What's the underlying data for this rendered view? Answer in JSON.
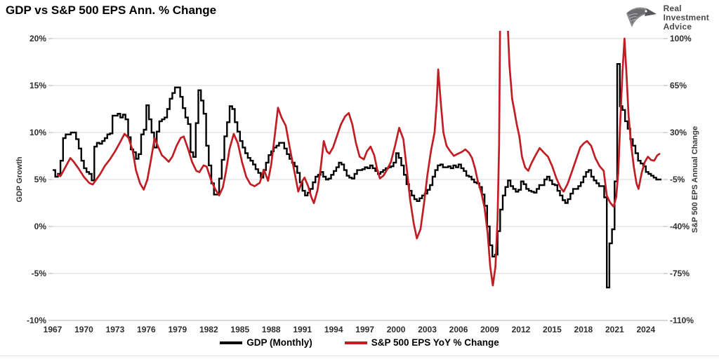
{
  "title": "GDP vs S&P 500 EPS Ann. % Change",
  "logo": {
    "lines": [
      "Real",
      "Investment",
      "Advice"
    ]
  },
  "colors": {
    "gdp_line": "#000000",
    "eps_line": "#c01e24",
    "gridline": "#d7d7d7",
    "tick": "#b0b0b0",
    "label": "#2e2e2e"
  },
  "chart_data": {
    "type": "line",
    "title": "GDP vs S&P 500 EPS Ann. % Change",
    "grid": true,
    "legend_position": "bottom",
    "x_axis": {
      "range": [
        1967.0,
        2025.7
      ],
      "tick_labels": [
        "1967",
        "1970",
        "1973",
        "1976",
        "1979",
        "1982",
        "1985",
        "1988",
        "1991",
        "1994",
        "1997",
        "2000",
        "2003",
        "2006",
        "2009",
        "2012",
        "2015",
        "2018",
        "2021",
        "2024"
      ]
    },
    "left_axis": {
      "label": "GDP Growth",
      "range": [
        -10,
        20
      ],
      "tick_labels": [
        "20%",
        "15%",
        "10%",
        "5%",
        "0%",
        "-5%",
        "-10%"
      ],
      "tick_values": [
        20,
        15,
        10,
        5,
        0,
        -5,
        -10
      ]
    },
    "right_axis": {
      "label": "S&P 500 EPS Annual Change",
      "range": [
        -110,
        100
      ],
      "tick_labels": [
        "100%",
        "65%",
        "30%",
        "-5%",
        "-40%",
        "-75%",
        "-110%"
      ],
      "tick_values": [
        100,
        65,
        30,
        -5,
        -40,
        -75,
        -110
      ]
    },
    "series": [
      {
        "name": "GDP (Monthly)",
        "axis": "left",
        "style": "step",
        "color": "#000000",
        "start": 1967.0,
        "step": 0.25,
        "values": [
          6.0,
          5.3,
          5.6,
          7.0,
          9.4,
          9.8,
          9.8,
          10.0,
          10.0,
          9.3,
          8.3,
          7.0,
          6.2,
          5.8,
          5.6,
          4.9,
          8.5,
          8.9,
          8.8,
          9.1,
          9.4,
          9.8,
          9.9,
          11.8,
          11.8,
          12.0,
          11.6,
          11.9,
          11.4,
          9.5,
          8.2,
          7.9,
          7.2,
          7.7,
          9.8,
          10.3,
          12.9,
          11.4,
          10.0,
          8.4,
          10.1,
          11.2,
          11.4,
          11.6,
          12.5,
          13.6,
          14.2,
          14.8,
          14.8,
          13.8,
          12.6,
          11.6,
          10.9,
          7.9,
          7.4,
          11.0,
          14.5,
          13.4,
          12.0,
          8.6,
          6.5,
          4.6,
          3.4,
          3.4,
          5.1,
          7.1,
          9.6,
          11.1,
          12.8,
          12.5,
          11.1,
          10.1,
          9.1,
          8.4,
          7.8,
          7.3,
          7.0,
          6.6,
          6.1,
          5.7,
          5.2,
          6.0,
          6.8,
          7.6,
          8.0,
          8.4,
          8.6,
          8.9,
          8.9,
          8.3,
          7.7,
          7.2,
          6.8,
          6.4,
          5.7,
          4.7,
          3.8,
          3.3,
          3.6,
          4.0,
          4.7,
          5.3,
          5.5,
          5.8,
          5.3,
          5.0,
          5.1,
          5.5,
          5.9,
          6.3,
          6.8,
          6.6,
          6.0,
          5.4,
          5.2,
          5.1,
          5.6,
          6.0,
          6.0,
          6.1,
          6.3,
          6.2,
          6.5,
          6.2,
          5.9,
          5.6,
          5.8,
          6.0,
          6.2,
          6.3,
          6.4,
          6.8,
          7.8,
          7.3,
          6.5,
          5.5,
          4.5,
          3.8,
          3.3,
          2.9,
          2.7,
          3.0,
          3.3,
          3.5,
          3.9,
          4.4,
          5.3,
          6.0,
          6.5,
          6.6,
          6.3,
          6.3,
          6.4,
          6.2,
          6.5,
          6.3,
          6.6,
          6.2,
          5.9,
          5.4,
          5.3,
          5.0,
          4.7,
          4.6,
          4.2,
          3.4,
          2.2,
          0.0,
          -2.0,
          -3.2,
          -3.0,
          -0.5,
          1.8,
          3.3,
          4.2,
          4.9,
          4.3,
          4.0,
          3.7,
          3.9,
          4.8,
          4.5,
          4.0,
          3.8,
          3.7,
          3.6,
          4.0,
          4.4,
          4.4,
          5.0,
          5.3,
          4.9,
          4.5,
          4.4,
          3.8,
          3.3,
          2.8,
          2.5,
          2.9,
          3.5,
          4.0,
          4.0,
          4.3,
          4.7,
          5.3,
          5.8,
          6.0,
          5.3,
          4.9,
          4.6,
          4.3,
          4.3,
          3.1,
          -6.5,
          -1.8,
          -0.3,
          4.8,
          17.3,
          12.8,
          12.4,
          11.2,
          10.4,
          9.3,
          8.6,
          7.8,
          7.0,
          6.7,
          6.4,
          5.8,
          5.6,
          5.4,
          5.2,
          5.0,
          5.0
        ]
      },
      {
        "name": "S&P 500 EPS YoY % Change",
        "axis": "right",
        "style": "line",
        "color": "#c01e24",
        "points": [
          [
            1967.5,
            -1.5
          ],
          [
            1967.75,
            -2.5
          ],
          [
            1968.0,
            1
          ],
          [
            1968.35,
            6
          ],
          [
            1968.7,
            11
          ],
          [
            1969.0,
            8.5
          ],
          [
            1969.5,
            3
          ],
          [
            1970.0,
            -3
          ],
          [
            1970.5,
            -7.5
          ],
          [
            1970.85,
            -8.7
          ],
          [
            1971.2,
            -5
          ],
          [
            1971.6,
            -0.5
          ],
          [
            1972.0,
            5
          ],
          [
            1972.5,
            10
          ],
          [
            1973.0,
            16
          ],
          [
            1973.5,
            23
          ],
          [
            1973.9,
            29
          ],
          [
            1974.3,
            26
          ],
          [
            1974.7,
            16
          ],
          [
            1975.0,
            2
          ],
          [
            1975.4,
            -8
          ],
          [
            1975.75,
            -12.5
          ],
          [
            1976.1,
            -5
          ],
          [
            1976.45,
            10
          ],
          [
            1976.8,
            25.8
          ],
          [
            1977.1,
            20
          ],
          [
            1977.5,
            13
          ],
          [
            1977.8,
            11
          ],
          [
            1978.15,
            8.2
          ],
          [
            1978.5,
            12
          ],
          [
            1978.9,
            20
          ],
          [
            1979.3,
            26
          ],
          [
            1979.6,
            27
          ],
          [
            1980.0,
            18
          ],
          [
            1980.4,
            8
          ],
          [
            1980.8,
            1.5
          ],
          [
            1981.1,
            0.5
          ],
          [
            1981.5,
            5.5
          ],
          [
            1981.8,
            4.5
          ],
          [
            1982.2,
            -5
          ],
          [
            1982.6,
            -12
          ],
          [
            1983.0,
            -16.8
          ],
          [
            1983.35,
            -11
          ],
          [
            1983.65,
            1
          ],
          [
            1984.0,
            18
          ],
          [
            1984.4,
            29
          ],
          [
            1984.8,
            22
          ],
          [
            1985.2,
            8
          ],
          [
            1985.6,
            -3
          ],
          [
            1986.0,
            -8.5
          ],
          [
            1986.4,
            -10
          ],
          [
            1986.9,
            -7.5
          ],
          [
            1987.3,
            2.3
          ],
          [
            1987.7,
            -6
          ],
          [
            1988.0,
            6
          ],
          [
            1988.3,
            25
          ],
          [
            1988.65,
            48.5
          ],
          [
            1989.0,
            41
          ],
          [
            1989.4,
            35
          ],
          [
            1989.8,
            18
          ],
          [
            1990.2,
            2
          ],
          [
            1990.6,
            -14
          ],
          [
            1991.0,
            -6
          ],
          [
            1991.2,
            -3.6
          ],
          [
            1991.55,
            -10
          ],
          [
            1991.85,
            -18
          ],
          [
            1992.1,
            -22.6
          ],
          [
            1992.45,
            -13
          ],
          [
            1992.75,
            3
          ],
          [
            1993.05,
            23.7
          ],
          [
            1993.35,
            16
          ],
          [
            1993.6,
            14.2
          ],
          [
            1993.95,
            19
          ],
          [
            1994.3,
            27
          ],
          [
            1994.7,
            36
          ],
          [
            1995.1,
            42
          ],
          [
            1995.45,
            44.5
          ],
          [
            1995.8,
            36
          ],
          [
            1996.15,
            22
          ],
          [
            1996.5,
            12
          ],
          [
            1996.9,
            10
          ],
          [
            1997.2,
            16
          ],
          [
            1997.55,
            19.5
          ],
          [
            1997.9,
            13
          ],
          [
            1998.2,
            2
          ],
          [
            1998.45,
            -4.2
          ],
          [
            1998.8,
            -2
          ],
          [
            1999.1,
            2
          ],
          [
            1999.5,
            8
          ],
          [
            1999.9,
            20
          ],
          [
            2000.3,
            33.5
          ],
          [
            2000.7,
            25
          ],
          [
            2001.0,
            5
          ],
          [
            2001.35,
            -20
          ],
          [
            2001.7,
            -38
          ],
          [
            2002.0,
            -48.9
          ],
          [
            2002.35,
            -42
          ],
          [
            2002.7,
            -22
          ],
          [
            2003.0,
            -2
          ],
          [
            2003.35,
            16
          ],
          [
            2003.7,
            30
          ],
          [
            2003.9,
            52
          ],
          [
            2004.05,
            77
          ],
          [
            2004.3,
            52
          ],
          [
            2004.55,
            30
          ],
          [
            2004.85,
            20
          ],
          [
            2005.2,
            16
          ],
          [
            2005.55,
            12.6
          ],
          [
            2005.9,
            14
          ],
          [
            2006.3,
            15.5
          ],
          [
            2006.65,
            17.4
          ],
          [
            2007.0,
            15
          ],
          [
            2007.3,
            11
          ],
          [
            2007.6,
            3
          ],
          [
            2007.85,
            -6
          ],
          [
            2008.2,
            -15
          ],
          [
            2008.5,
            -26
          ],
          [
            2008.8,
            -45
          ],
          [
            2009.05,
            -70
          ],
          [
            2009.3,
            -84
          ],
          [
            2009.55,
            -70
          ],
          [
            2009.75,
            -35
          ],
          [
            2009.9,
            20
          ],
          [
            2010.0,
            115
          ],
          [
            2010.7,
            115
          ],
          [
            2010.9,
            80
          ],
          [
            2011.15,
            55
          ],
          [
            2011.35,
            47
          ],
          [
            2011.6,
            36
          ],
          [
            2011.85,
            27
          ],
          [
            2012.1,
            12
          ],
          [
            2012.4,
            4
          ],
          [
            2012.7,
            1.5
          ],
          [
            2013.0,
            7
          ],
          [
            2013.4,
            13
          ],
          [
            2013.8,
            18.4
          ],
          [
            2014.2,
            15
          ],
          [
            2014.6,
            12
          ],
          [
            2015.0,
            5
          ],
          [
            2015.4,
            -4
          ],
          [
            2015.8,
            -11
          ],
          [
            2016.1,
            -14
          ],
          [
            2016.5,
            -8
          ],
          [
            2016.9,
            1
          ],
          [
            2017.3,
            10
          ],
          [
            2017.7,
            19
          ],
          [
            2018.05,
            22
          ],
          [
            2018.35,
            23.7
          ],
          [
            2018.75,
            20
          ],
          [
            2019.15,
            11
          ],
          [
            2019.55,
            5
          ],
          [
            2019.95,
            1.5
          ],
          [
            2020.25,
            -17
          ],
          [
            2020.55,
            -22
          ],
          [
            2020.9,
            -25.3
          ],
          [
            2021.15,
            -18
          ],
          [
            2021.35,
            0
          ],
          [
            2021.55,
            40
          ],
          [
            2021.75,
            75
          ],
          [
            2021.95,
            100
          ],
          [
            2022.15,
            72
          ],
          [
            2022.35,
            42
          ],
          [
            2022.6,
            20
          ],
          [
            2022.85,
            4
          ],
          [
            2023.1,
            -8
          ],
          [
            2023.3,
            -12
          ],
          [
            2023.6,
            0
          ],
          [
            2023.9,
            8
          ],
          [
            2024.2,
            12
          ],
          [
            2024.5,
            9.5
          ],
          [
            2024.8,
            9
          ],
          [
            2025.1,
            13
          ],
          [
            2025.3,
            14
          ]
        ]
      }
    ]
  }
}
